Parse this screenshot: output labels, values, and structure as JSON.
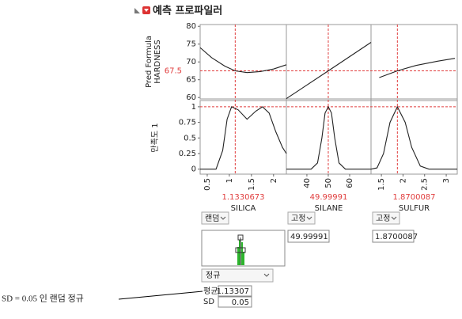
{
  "header": {
    "title": "예측 프로파일러"
  },
  "profiler": {
    "response": {
      "label_lines": [
        "Pred Formula",
        "HARDNESS"
      ],
      "current": 67.5,
      "ylim": [
        59.6,
        80.5
      ],
      "yticks": [
        60,
        65,
        70,
        75,
        80
      ]
    },
    "desirability": {
      "label": "만족도 1",
      "current": 1,
      "ylim": [
        -0.08,
        1.1
      ],
      "yticks": [
        0,
        0.25,
        0.5,
        0.75,
        1
      ]
    },
    "factors": [
      {
        "name": "SILICA",
        "current": 1.1330673,
        "xlim": [
          0.34,
          2.29
        ],
        "xticks": [
          0.5,
          1,
          1.5,
          2
        ],
        "control": "랜덤",
        "response_curve": {
          "x": [
            0.34,
            0.6,
            0.9,
            1.133,
            1.4,
            1.7,
            2.0,
            2.29
          ],
          "y": [
            74,
            71.2,
            68.8,
            67.5,
            67.0,
            67.3,
            68.0,
            69.2
          ]
        },
        "desirability_curve": {
          "x": [
            0.34,
            0.7,
            0.85,
            0.95,
            1.05,
            1.2,
            1.4,
            1.6,
            1.75,
            1.9,
            2.05,
            2.2,
            2.29
          ],
          "y": [
            0,
            0,
            0.3,
            0.8,
            1,
            0.95,
            0.8,
            0.93,
            1,
            0.9,
            0.6,
            0.35,
            0.25
          ]
        },
        "random": {
          "distribution": "정규",
          "mean_label": "평균",
          "mean": 1.13307,
          "sd_label": "SD",
          "sd": 0.05
        }
      },
      {
        "name": "SILANE",
        "current": 49.99991,
        "xlim": [
          30.4,
          70
        ],
        "xticks": [
          40,
          50,
          60
        ],
        "control": "고정",
        "response_curve": {
          "x": [
            30.4,
            50,
            70
          ],
          "y": [
            59.7,
            67.5,
            75.5
          ]
        },
        "desirability_curve": {
          "x": [
            30.4,
            42,
            45,
            47,
            48.5,
            50,
            51.5,
            53,
            55,
            58,
            70
          ],
          "y": [
            0,
            0,
            0.1,
            0.5,
            0.9,
            1,
            0.9,
            0.5,
            0.1,
            0,
            0
          ]
        }
      },
      {
        "name": "SULFUR",
        "current": 1.8700087,
        "xlim": [
          1.26,
          3.255
        ],
        "xticks": [
          1.5,
          2,
          2.5,
          3
        ],
        "control": "고정",
        "response_curve": {
          "x": [
            1.45,
            1.87,
            2.3,
            2.8,
            3.2
          ],
          "y": [
            65.6,
            67.5,
            69.0,
            70.2,
            71.0
          ]
        },
        "desirability_curve": {
          "x": [
            1.26,
            1.4,
            1.55,
            1.7,
            1.87,
            2.05,
            2.2,
            2.4,
            2.6,
            3.255
          ],
          "y": [
            0,
            0.02,
            0.25,
            0.75,
            1,
            0.75,
            0.35,
            0.05,
            0,
            0
          ]
        }
      }
    ]
  },
  "annotation": "SD = 0.05 인 랜덤 정규"
}
